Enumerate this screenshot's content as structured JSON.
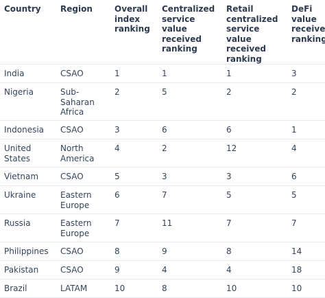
{
  "table": {
    "headers": [
      "Country",
      "Region",
      "Overall index ranking",
      "Centralized service value received ranking",
      "Retail centralized service value received ranking",
      "DeFi value received ranking"
    ],
    "rows": [
      [
        "India",
        "CSAO",
        "1",
        "1",
        "1",
        "3"
      ],
      [
        "Nigeria",
        "Sub-Saharan Africa",
        "2",
        "5",
        "2",
        "2"
      ],
      [
        "Indonesia",
        "CSAO",
        "3",
        "6",
        "6",
        "1"
      ],
      [
        "United States",
        "North America",
        "4",
        "2",
        "12",
        "4"
      ],
      [
        "Vietnam",
        "CSAO",
        "5",
        "3",
        "3",
        "6"
      ],
      [
        "Ukraine",
        "Eastern Europe",
        "6",
        "7",
        "5",
        "5"
      ],
      [
        "Russia",
        "Eastern Europe",
        "7",
        "11",
        "7",
        "7"
      ],
      [
        "Philippines",
        "CSAO",
        "8",
        "9",
        "8",
        "14"
      ],
      [
        "Pakistan",
        "CSAO",
        "9",
        "4",
        "4",
        "18"
      ],
      [
        "Brazil",
        "LATAM",
        "10",
        "8",
        "10",
        "10"
      ]
    ]
  },
  "colors": {
    "text": "#34445a",
    "header_text": "#2d3a4f",
    "divider": "#e6e9ee",
    "background": "#ffffff"
  }
}
